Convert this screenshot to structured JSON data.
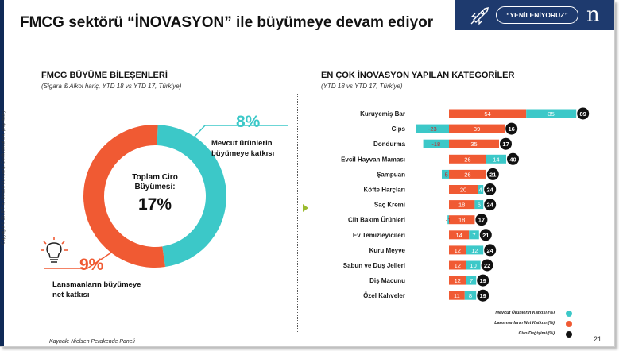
{
  "header": {
    "title": "FMCG sektörü “İNOVASYON” ile büyümeye devam ediyor",
    "badge": "“YENİLENİYORUZ”",
    "logo": "n",
    "band_color": "#1e3a6e"
  },
  "side_text": "Copyright © 2018 The Nielsen Company. Confidential and proprietary.",
  "left": {
    "heading": "FMCG BÜYÜME BİLEŞENLERİ",
    "subheading": "(Sigara & Alkol hariç, YTD 18 vs YTD 17, Türkiye)",
    "donut": {
      "center_label": "Toplam Ciro Büyümesi:",
      "center_value": "17%",
      "segments": [
        {
          "label": "Mevcut ürünlerin büyümeye katkısı",
          "percent": "8%",
          "value": 8,
          "color": "#3cc8c8"
        },
        {
          "label": "Lansmanların büyümeye net katkısı",
          "percent": "9%",
          "value": 9,
          "color": "#f05a33"
        }
      ]
    },
    "icons": {
      "idea": "lightbulb-icon"
    }
  },
  "right": {
    "heading": "EN ÇOK İNOVASYON YAPILAN KATEGORİLER",
    "subheading": "(YTD 18 vs YTD 17, Türkiye)"
  },
  "chart_data": {
    "type": "bar",
    "orientation": "horizontal",
    "stacked": true,
    "categories": [
      "Kuruyemiş Bar",
      "Cips",
      "Dondurma",
      "Evcil Hayvan Maması",
      "Şampuan",
      "Köfte Harçları",
      "Saç Kremi",
      "Cilt Bakım Ürünleri",
      "Ev Temizleyicileri",
      "Kuru Meyve",
      "Sabun ve Duş Jelleri",
      "Diş Macunu",
      "Özel Kahveler"
    ],
    "series": [
      {
        "name": "Lansmanların Net Katkısı (%)",
        "color": "#f05a33",
        "values": [
          54,
          39,
          35,
          26,
          26,
          20,
          18,
          18,
          14,
          12,
          12,
          12,
          11
        ]
      },
      {
        "name": "Mevcut Ürünlerin Katkısı (%)",
        "color": "#3cc8c8",
        "values": [
          35,
          -23,
          -18,
          14,
          -5,
          4,
          6,
          -1,
          7,
          12,
          10,
          7,
          8
        ]
      },
      {
        "name": "Ciro Değişimi (%)",
        "color": "#111111",
        "values": [
          89,
          16,
          17,
          40,
          21,
          24,
          24,
          17,
          21,
          24,
          22,
          19,
          19
        ]
      }
    ]
  },
  "footer": {
    "source": "Kaynak: Nielsen Perakende Paneli",
    "page": "21"
  }
}
